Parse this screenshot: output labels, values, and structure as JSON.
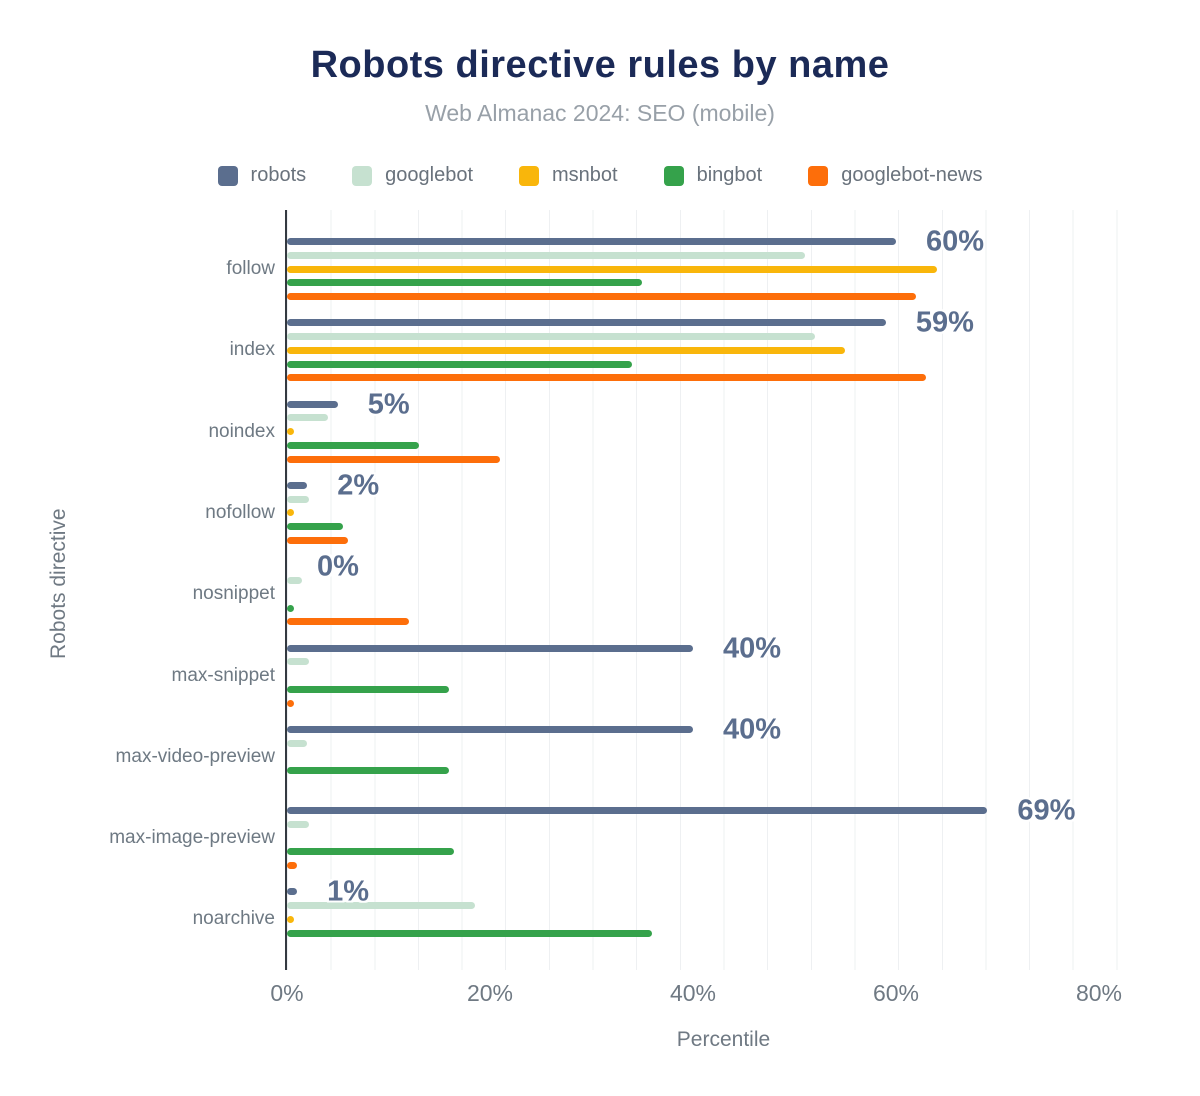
{
  "chart_data": {
    "type": "bar",
    "orientation": "horizontal",
    "title": "Robots directive rules by name",
    "subtitle": "Web Almanac 2024: SEO (mobile)",
    "xlabel": "Percentile",
    "ylabel": "Robots directive",
    "xlim": [
      0,
      86
    ],
    "grid": "vertical-light",
    "legend_position": "top",
    "categories": [
      "follow",
      "index",
      "noindex",
      "nofollow",
      "nosnippet",
      "max-snippet",
      "max-video-preview",
      "max-image-preview",
      "noarchive"
    ],
    "series": [
      {
        "name": "robots",
        "color": "#5b6e8e",
        "values": [
          60,
          59,
          5,
          2,
          0,
          40,
          40,
          69,
          1
        ]
      },
      {
        "name": "googlebot",
        "color": "#c6e1d0",
        "values": [
          51,
          52,
          4,
          2.2,
          1.5,
          2.2,
          2,
          2.2,
          18.5
        ]
      },
      {
        "name": "msnbot",
        "color": "#f9b60b",
        "values": [
          64,
          55,
          0.5,
          0.4,
          0,
          0,
          0,
          0,
          0.5
        ]
      },
      {
        "name": "bingbot",
        "color": "#35a24b",
        "values": [
          35,
          34,
          13,
          5.5,
          0.6,
          16,
          16,
          16.5,
          36
        ]
      },
      {
        "name": "googlebot-news",
        "color": "#fd6e0a",
        "values": [
          62,
          63,
          21,
          6,
          12,
          0.4,
          0,
          1,
          0
        ]
      }
    ],
    "data_labels": {
      "series": "robots",
      "values": [
        "60%",
        "59%",
        "5%",
        "2%",
        "0%",
        "40%",
        "40%",
        "69%",
        "1%"
      ]
    },
    "x_ticks": [
      {
        "value": 0,
        "label": "0%"
      },
      {
        "value": 20,
        "label": "20%"
      },
      {
        "value": 40,
        "label": "40%"
      },
      {
        "value": 60,
        "label": "60%"
      },
      {
        "value": 80,
        "label": "80%"
      }
    ]
  }
}
